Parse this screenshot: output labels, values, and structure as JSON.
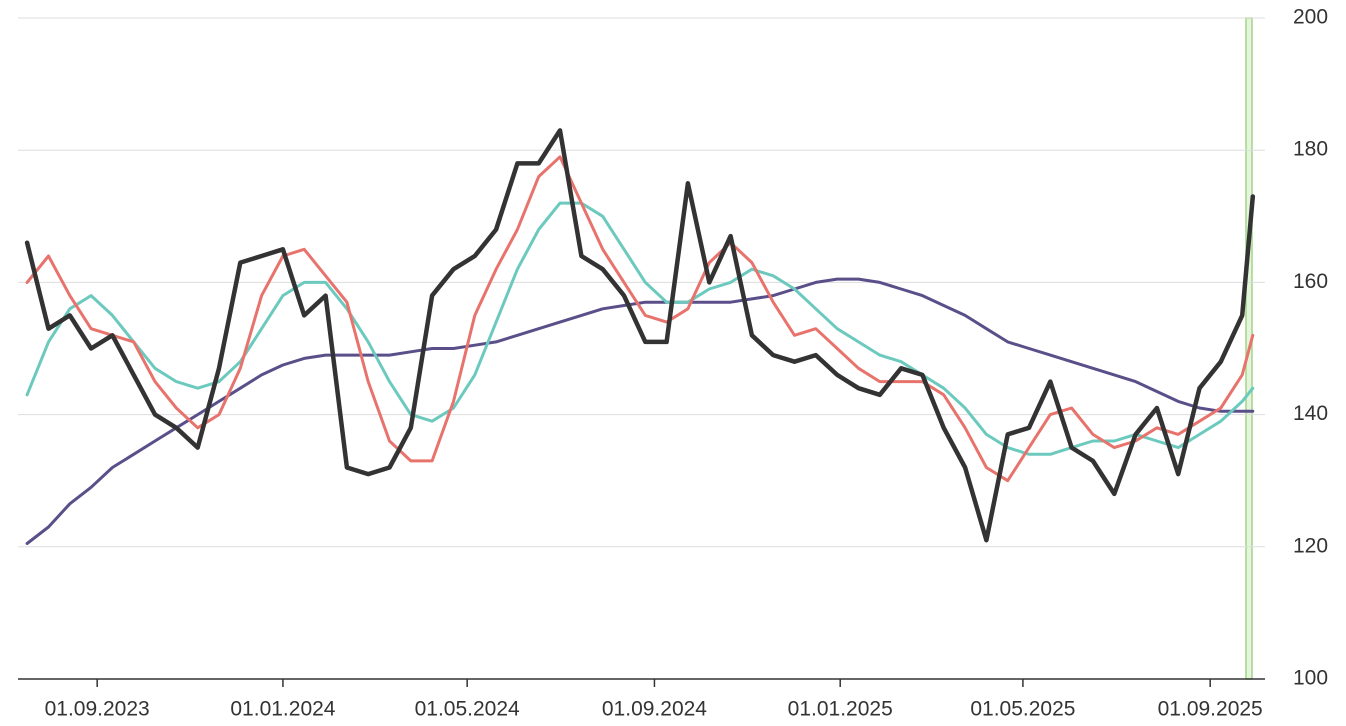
{
  "chart_data": {
    "type": "line",
    "x": [
      "2023-07-17",
      "2023-07-31",
      "2023-08-14",
      "2023-08-28",
      "2023-09-11",
      "2023-09-25",
      "2023-10-09",
      "2023-10-23",
      "2023-11-06",
      "2023-11-20",
      "2023-12-04",
      "2023-12-18",
      "2024-01-01",
      "2024-01-15",
      "2024-01-29",
      "2024-02-12",
      "2024-02-26",
      "2024-03-11",
      "2024-03-25",
      "2024-04-08",
      "2024-04-22",
      "2024-05-06",
      "2024-05-20",
      "2024-06-03",
      "2024-06-17",
      "2024-07-01",
      "2024-07-15",
      "2024-07-29",
      "2024-08-12",
      "2024-08-26",
      "2024-09-09",
      "2024-09-23",
      "2024-10-07",
      "2024-10-21",
      "2024-11-04",
      "2024-11-18",
      "2024-12-02",
      "2024-12-16",
      "2024-12-30",
      "2025-01-13",
      "2025-01-27",
      "2025-02-10",
      "2025-02-24",
      "2025-03-10",
      "2025-03-24",
      "2025-04-07",
      "2025-04-21",
      "2025-05-05",
      "2025-05-19",
      "2025-06-02",
      "2025-06-16",
      "2025-06-30",
      "2025-07-14",
      "2025-07-28",
      "2025-08-11",
      "2025-08-25",
      "2025-09-08",
      "2025-09-22",
      "2025-09-29"
    ],
    "series": [
      {
        "color": "#5b4f8a",
        "values": [
          120.5,
          123,
          126.5,
          129,
          132,
          134,
          136,
          138,
          140,
          142,
          144,
          146,
          147.5,
          148.5,
          149,
          149,
          149,
          149,
          149.5,
          150,
          150,
          150.5,
          151,
          152,
          153,
          154,
          155,
          156,
          156.5,
          157,
          157,
          157,
          157,
          157,
          157.5,
          158,
          159,
          160,
          160.5,
          160.5,
          160,
          159,
          158,
          156.5,
          155,
          153,
          151,
          150,
          149,
          148,
          147,
          146,
          145,
          143.5,
          142,
          141,
          140.5,
          140.5,
          140.5
        ]
      },
      {
        "color": "#6cc9be",
        "values": [
          143,
          151,
          156,
          158,
          155,
          151,
          147,
          145,
          144,
          145,
          148,
          153,
          158,
          160,
          160,
          156,
          151,
          145,
          140,
          139,
          141,
          146,
          154,
          162,
          168,
          172,
          172,
          170,
          165,
          160,
          157,
          157,
          159,
          160,
          162,
          161,
          159,
          156,
          153,
          151,
          149,
          148,
          146,
          144,
          141,
          137,
          135,
          134,
          134,
          135,
          136,
          136,
          137,
          136,
          135,
          137,
          139,
          142,
          144
        ]
      },
      {
        "color": "#e8736c",
        "values": [
          160,
          164,
          158,
          153,
          152,
          151,
          145,
          141,
          138,
          140,
          147,
          158,
          164,
          165,
          161,
          157,
          145,
          136,
          133,
          133,
          142,
          155,
          162,
          168,
          176,
          179,
          172,
          165,
          160,
          155,
          154,
          156,
          163,
          166,
          163,
          157,
          152,
          153,
          150,
          147,
          145,
          145,
          145,
          143,
          138,
          132,
          130,
          135,
          140,
          141,
          137,
          135,
          136,
          138,
          137,
          139,
          141,
          146,
          152
        ]
      },
      {
        "color": "#333333",
        "values": [
          166,
          153,
          155,
          150,
          152,
          146,
          140,
          138,
          135,
          147,
          163,
          164,
          165,
          155,
          158,
          132,
          131,
          132,
          138,
          158,
          162,
          164,
          168,
          178,
          178,
          183,
          164,
          162,
          158,
          151,
          151,
          175,
          160,
          167,
          152,
          149,
          148,
          149,
          146,
          144,
          143,
          147,
          146,
          138,
          132,
          121,
          137,
          138,
          145,
          135,
          133,
          128,
          137,
          141,
          131,
          144,
          148,
          155,
          173
        ]
      }
    ],
    "xlim": [
      "2023-07-11",
      "2025-10-07"
    ],
    "xticks": [
      {
        "value": "2023-09-01",
        "label": "01.09.2023"
      },
      {
        "value": "2024-01-01",
        "label": "01.01.2024"
      },
      {
        "value": "2024-05-01",
        "label": "01.05.2024"
      },
      {
        "value": "2024-09-01",
        "label": "01.09.2024"
      },
      {
        "value": "2025-01-01",
        "label": "01.01.2025"
      },
      {
        "value": "2025-05-01",
        "label": "01.05.2025"
      },
      {
        "value": "2025-09-01",
        "label": "01.09.2025"
      }
    ],
    "ylim": [
      100,
      200
    ],
    "yticks": [
      100,
      120,
      140,
      160,
      180,
      200
    ],
    "grid": true
  }
}
